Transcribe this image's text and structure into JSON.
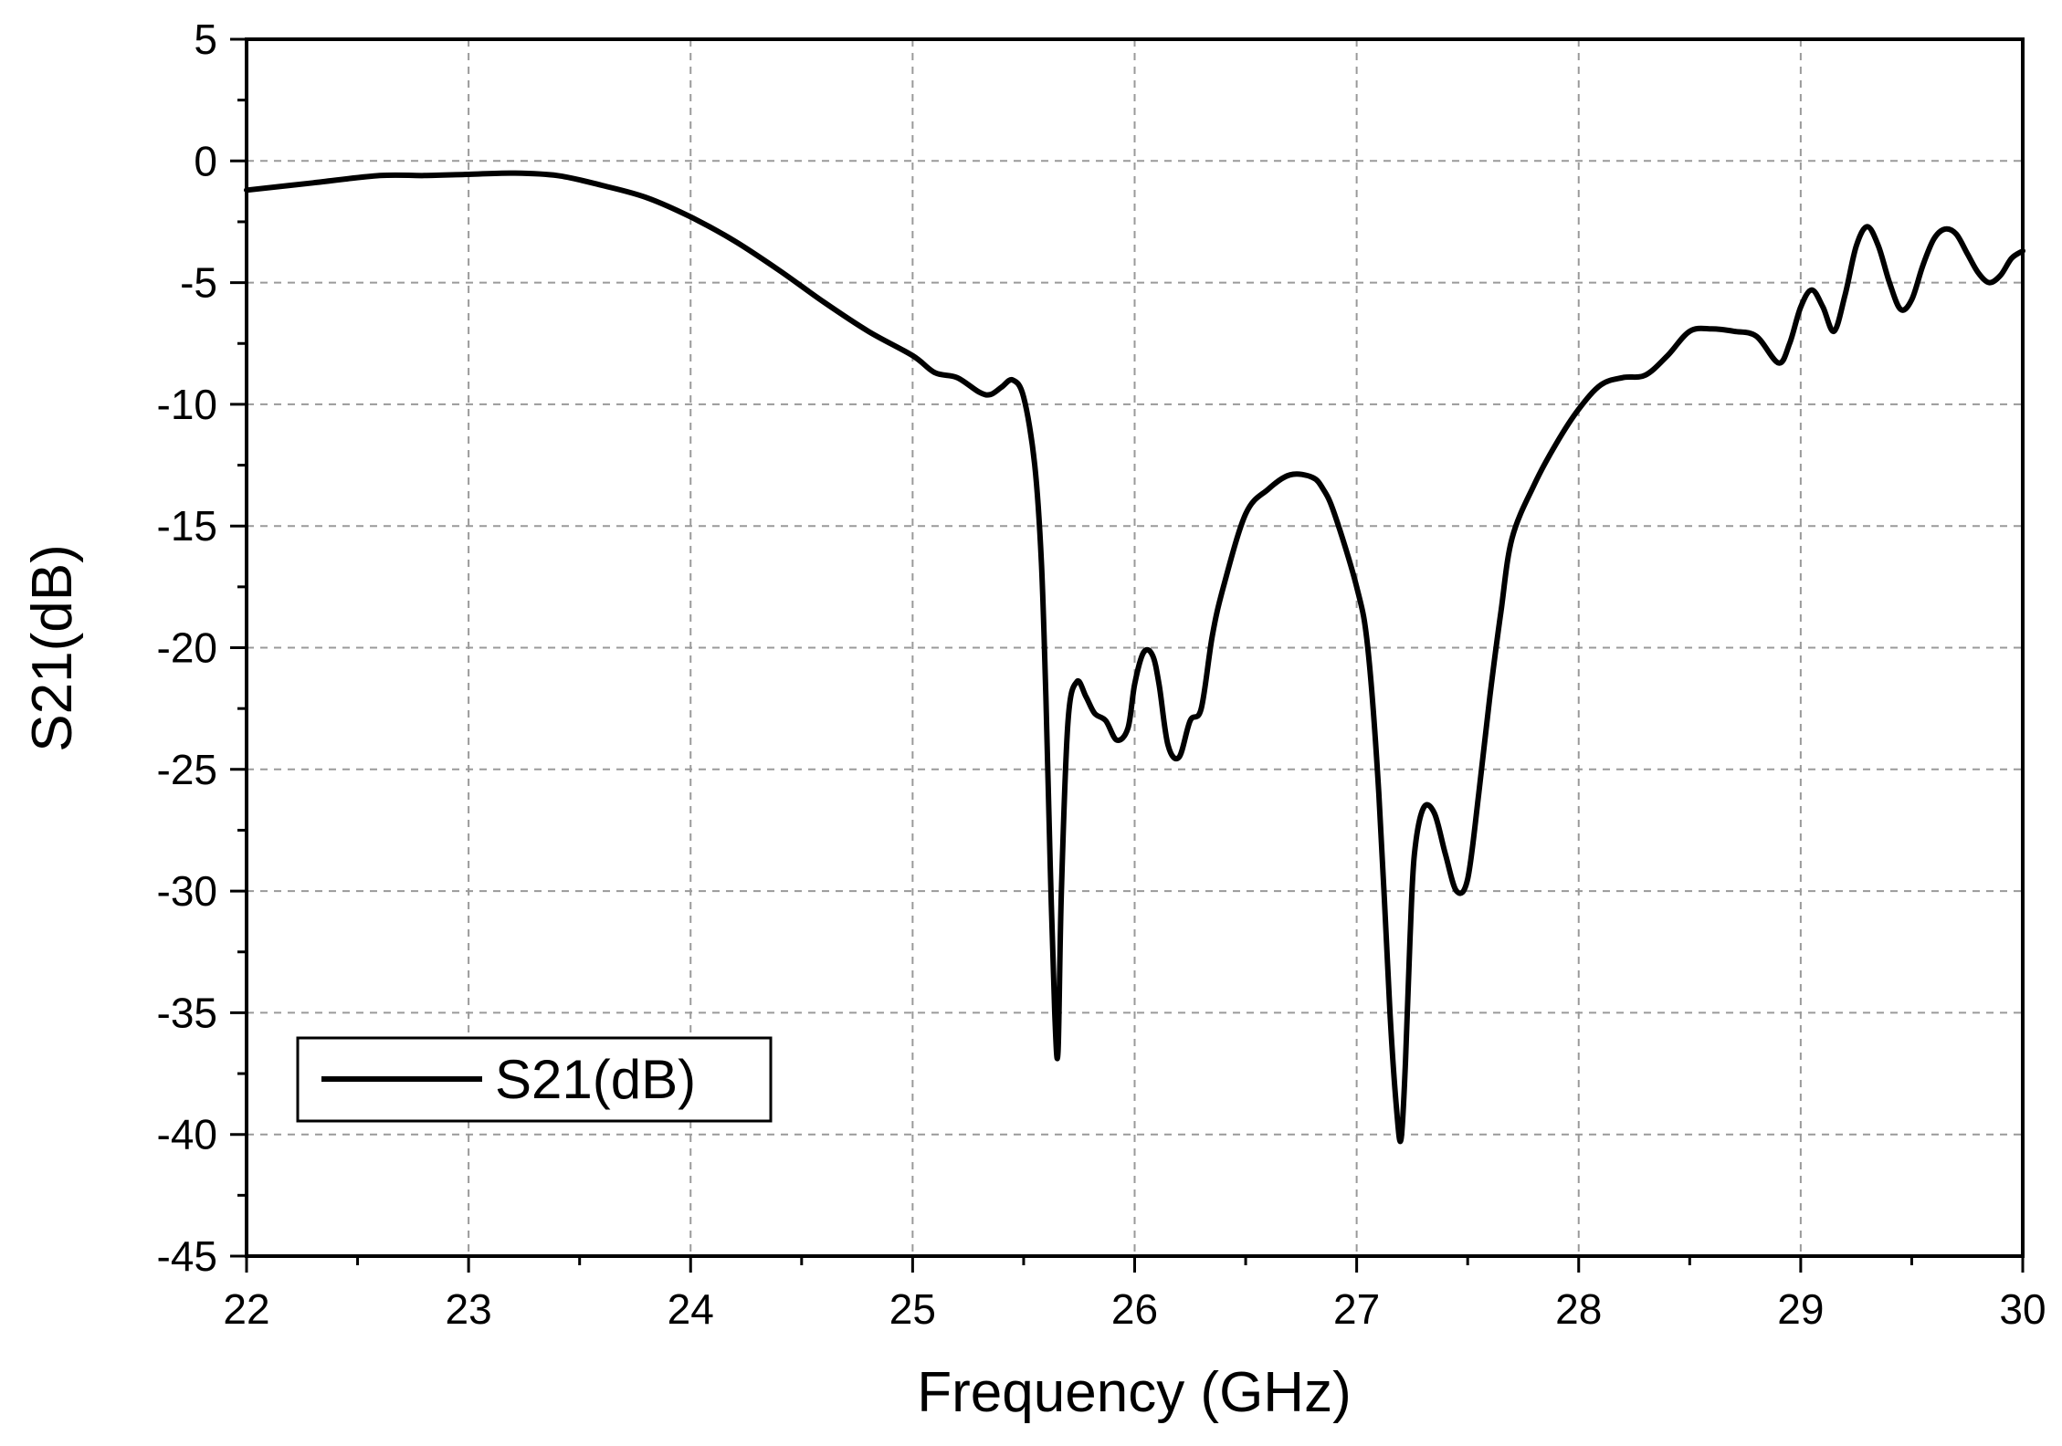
{
  "chart_data": {
    "type": "line",
    "xlabel": "Frequency (GHz)",
    "ylabel": "S21(dB)",
    "xlim": [
      22,
      30
    ],
    "ylim": [
      -45,
      5
    ],
    "xticks": [
      22,
      23,
      24,
      25,
      26,
      27,
      28,
      29,
      30
    ],
    "yticks": [
      5,
      0,
      -5,
      -10,
      -15,
      -20,
      -25,
      -30,
      -35,
      -40,
      -45
    ],
    "grid": true,
    "legend": {
      "position": "bottom-left",
      "entries": [
        "S21(dB)"
      ]
    },
    "series": [
      {
        "name": "S21(dB)",
        "color": "#000000",
        "x": [
          22.0,
          22.3,
          22.6,
          22.8,
          23.0,
          23.2,
          23.4,
          23.6,
          23.8,
          24.0,
          24.2,
          24.4,
          24.6,
          24.8,
          25.0,
          25.1,
          25.2,
          25.3,
          25.35,
          25.4,
          25.45,
          25.5,
          25.55,
          25.58,
          25.6,
          25.62,
          25.64,
          25.655,
          25.67,
          25.7,
          25.74,
          25.78,
          25.82,
          25.87,
          25.92,
          25.97,
          26.0,
          26.04,
          26.08,
          26.11,
          26.15,
          26.2,
          26.25,
          26.3,
          26.35,
          26.4,
          26.5,
          26.6,
          26.7,
          26.8,
          26.85,
          26.9,
          27.0,
          27.05,
          27.1,
          27.15,
          27.18,
          27.2,
          27.22,
          27.24,
          27.26,
          27.3,
          27.35,
          27.4,
          27.45,
          27.5,
          27.55,
          27.6,
          27.65,
          27.7,
          27.8,
          27.9,
          28.0,
          28.1,
          28.2,
          28.3,
          28.4,
          28.5,
          28.6,
          28.7,
          28.8,
          28.9,
          28.95,
          29.0,
          29.05,
          29.1,
          29.15,
          29.2,
          29.25,
          29.3,
          29.35,
          29.4,
          29.45,
          29.5,
          29.55,
          29.6,
          29.65,
          29.7,
          29.75,
          29.8,
          29.85,
          29.9,
          29.95,
          30.0
        ],
        "y": [
          -1.2,
          -0.9,
          -0.6,
          -0.6,
          -0.55,
          -0.5,
          -0.6,
          -1.0,
          -1.5,
          -2.3,
          -3.3,
          -4.5,
          -5.8,
          -7.0,
          -8.0,
          -8.7,
          -8.9,
          -9.5,
          -9.6,
          -9.3,
          -9.0,
          -9.7,
          -12.5,
          -16.5,
          -22.0,
          -29.0,
          -35.0,
          -36.6,
          -30.0,
          -23.0,
          -21.4,
          -22.0,
          -22.7,
          -23.0,
          -23.8,
          -23.3,
          -21.5,
          -20.2,
          -20.3,
          -21.5,
          -24.0,
          -24.5,
          -23.0,
          -22.5,
          -19.5,
          -17.5,
          -14.5,
          -13.5,
          -12.9,
          -13.0,
          -13.5,
          -14.5,
          -17.5,
          -20.0,
          -26.0,
          -35.0,
          -39.0,
          -40.2,
          -37.0,
          -32.0,
          -28.5,
          -26.6,
          -26.8,
          -28.5,
          -30.0,
          -29.5,
          -26.0,
          -22.0,
          -18.5,
          -15.5,
          -13.3,
          -11.6,
          -10.2,
          -9.2,
          -8.9,
          -8.8,
          -8.0,
          -7.0,
          -6.9,
          -7.0,
          -7.2,
          -8.3,
          -7.5,
          -6.0,
          -5.3,
          -6.0,
          -7.0,
          -5.5,
          -3.5,
          -2.7,
          -3.5,
          -5.0,
          -6.1,
          -5.7,
          -4.3,
          -3.2,
          -2.8,
          -3.0,
          -3.8,
          -4.6,
          -5.0,
          -4.7,
          -4.0,
          -3.7
        ]
      }
    ]
  }
}
